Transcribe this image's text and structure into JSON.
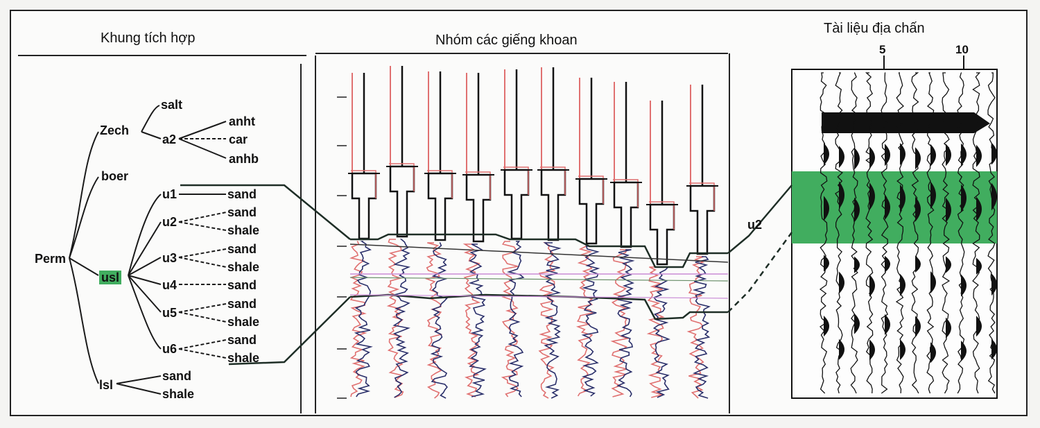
{
  "headers": {
    "framework": "Khung tích hợp",
    "wells": "Nhóm các giếng khoan",
    "seismic": "Tài liệu địa chấn"
  },
  "tree": {
    "root": "Perm",
    "zech": "Zech",
    "salt": "salt",
    "a2": "a2",
    "anht": "anht",
    "car": "car",
    "anhb": "anhb",
    "boer": "boer",
    "usl": "usl",
    "u1": "u1",
    "u2": "u2",
    "u3": "u3",
    "u4": "u4",
    "u5": "u5",
    "u6": "u6",
    "sand": "sand",
    "shale": "shale",
    "lsl": "lsl"
  },
  "seismic": {
    "trace_ticks": [
      "5",
      "10"
    ],
    "horizon_label": "u2"
  },
  "colors": {
    "highlight": "#41ad5f",
    "log_red": "#e07070",
    "log_blue": "#2a2f6a",
    "line": "#1e2e26"
  }
}
